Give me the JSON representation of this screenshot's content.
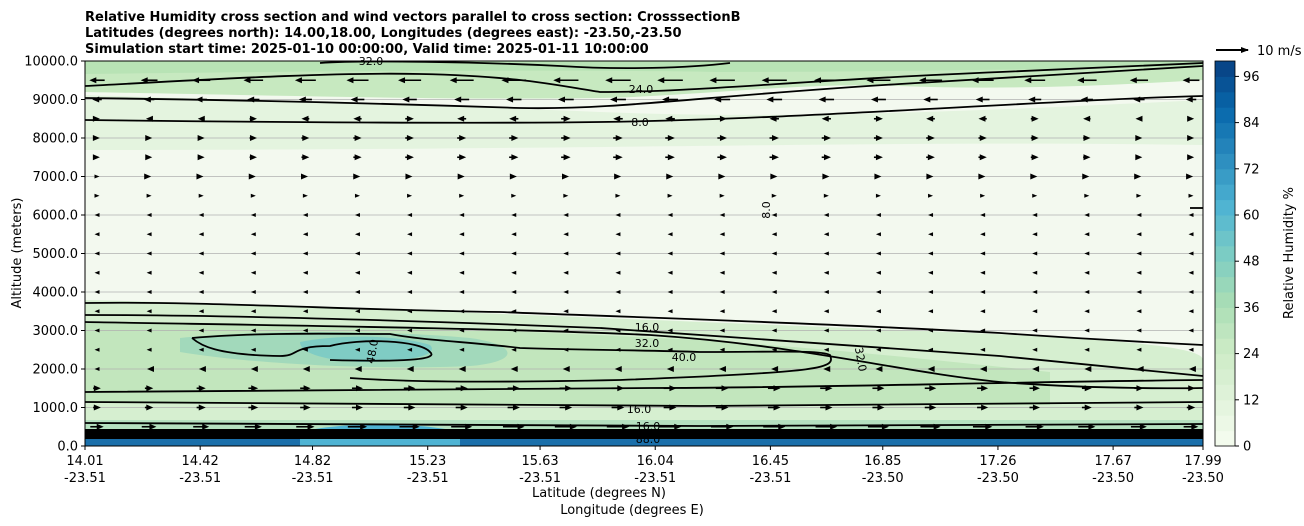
{
  "chart_data": {
    "type": "contour",
    "title_lines": [
      "Relative Humidity cross section and wind vectors parallel to cross section: CrosssectionB",
      "Latitudes (degrees north): 14.00,18.00, Longitudes (degrees east): -23.50,-23.50",
      "Simulation start time: 2025-01-10 00:00:00, Valid time: 2025-01-11 10:00:00"
    ],
    "ylabel": "Altitude (meters)",
    "xlabel_lines": [
      "Latitude (degrees N)",
      "Longitude (degrees E)"
    ],
    "ylim": [
      0,
      10000
    ],
    "yticks": [
      0,
      1000,
      2000,
      3000,
      4000,
      5000,
      6000,
      7000,
      8000,
      9000,
      10000
    ],
    "ytick_labels": [
      "0.0",
      "1000.0",
      "2000.0",
      "3000.0",
      "4000.0",
      "5000.0",
      "6000.0",
      "7000.0",
      "8000.0",
      "9000.0",
      "10000.0"
    ],
    "xlim": [
      14.01,
      17.99
    ],
    "xticks": [
      14.01,
      14.42,
      14.82,
      15.23,
      15.63,
      16.04,
      16.45,
      16.85,
      17.26,
      17.67,
      17.99
    ],
    "xtick_labels": [
      [
        "14.01",
        "-23.51"
      ],
      [
        "14.42",
        "-23.51"
      ],
      [
        "14.82",
        "-23.51"
      ],
      [
        "15.23",
        "-23.51"
      ],
      [
        "15.63",
        "-23.51"
      ],
      [
        "16.04",
        "-23.51"
      ],
      [
        "16.45",
        "-23.51"
      ],
      [
        "16.85",
        "-23.50"
      ],
      [
        "17.26",
        "-23.50"
      ],
      [
        "17.67",
        "-23.50"
      ],
      [
        "17.99",
        "-23.50"
      ]
    ],
    "grid": "horizontal",
    "colorbar": {
      "label": "Relative Humidity %",
      "ticks": [
        0,
        12,
        24,
        36,
        48,
        60,
        72,
        84,
        96
      ],
      "min": 0,
      "max": 100,
      "levels_step": 4,
      "colormap": "GnBu"
    },
    "quiver_key": {
      "label": "10 m/s"
    },
    "contour_lines": [
      {
        "level_label": "32.0",
        "altitude_m": 9950
      },
      {
        "level_label": "24.0",
        "altitude_m": 9400
      },
      {
        "level_label": "8.0",
        "altitude_m": 8450
      },
      {
        "level_label": "8.0",
        "altitude_m": 6100
      },
      {
        "level_label": "16.0",
        "altitude_m": 3100
      },
      {
        "level_label": "32.0",
        "altitude_m": 2700
      },
      {
        "level_label": "40.0",
        "altitude_m": 2300
      },
      {
        "level_label": "48.0",
        "altitude_m": 2400
      },
      {
        "level_label": "32.0",
        "altitude_m": 2300
      },
      {
        "level_label": "16.0",
        "altitude_m": 950
      },
      {
        "level_label": "16.0",
        "altitude_m": 550
      },
      {
        "level_label": "88.0",
        "altitude_m": 150
      }
    ],
    "wind_rows": [
      {
        "altitude_m": 9500,
        "direction": "west",
        "speed_ms": 8
      },
      {
        "altitude_m": 9000,
        "direction": "west",
        "speed_ms": 5
      },
      {
        "altitude_m": 8500,
        "direction": "mixed",
        "speed_ms": 3
      },
      {
        "altitude_m": 8000,
        "direction": "east",
        "speed_ms": 3
      },
      {
        "altitude_m": 7500,
        "direction": "east",
        "speed_ms": 3
      },
      {
        "altitude_m": 7000,
        "direction": "east",
        "speed_ms": 2
      },
      {
        "altitude_m": 6500,
        "direction": "east",
        "speed_ms": 1
      },
      {
        "altitude_m": 6000,
        "direction": "west",
        "speed_ms": 1
      },
      {
        "altitude_m": 5500,
        "direction": "west",
        "speed_ms": 1
      },
      {
        "altitude_m": 5000,
        "direction": "west",
        "speed_ms": 0.5
      },
      {
        "altitude_m": 4500,
        "direction": "west",
        "speed_ms": 0.5
      },
      {
        "altitude_m": 4000,
        "direction": "west",
        "speed_ms": 0.5
      },
      {
        "altitude_m": 3500,
        "direction": "west",
        "speed_ms": 0.3
      },
      {
        "altitude_m": 3000,
        "direction": "west",
        "speed_ms": 0.5
      },
      {
        "altitude_m": 2500,
        "direction": "west",
        "speed_ms": 1
      },
      {
        "altitude_m": 2000,
        "direction": "west",
        "speed_ms": 2
      },
      {
        "altitude_m": 1500,
        "direction": "east",
        "speed_ms": 4
      },
      {
        "altitude_m": 1000,
        "direction": "east",
        "speed_ms": 4
      },
      {
        "altitude_m": 500,
        "direction": "east",
        "speed_ms": 7
      }
    ]
  }
}
